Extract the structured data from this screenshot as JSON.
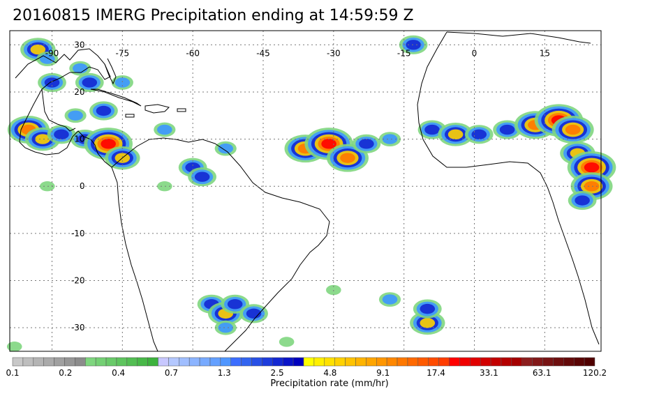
{
  "title": "20160815 IMERG Precipitation ending at 14:59:59 Z",
  "map": {
    "lon_range": [
      -99,
      27
    ],
    "lat_range": [
      -35,
      33
    ],
    "lon_ticks": [
      -90,
      -75,
      -60,
      -45,
      -30,
      -15,
      0,
      15
    ],
    "lat_ticks": [
      30,
      20,
      10,
      0,
      -10,
      -20,
      -30
    ],
    "lon_labels": [
      "-90",
      "-75",
      "-60",
      "-45",
      "-30",
      "-15",
      "0",
      "15"
    ],
    "lat_labels": [
      "30",
      "20",
      "10",
      "0",
      "-10",
      "-20",
      "-30"
    ],
    "grid": "dotted"
  },
  "colorbar": {
    "label": "Precipitation rate (mm/hr)",
    "tick_labels": [
      "0.1",
      "0.2",
      "0.4",
      "0.7",
      "1.3",
      "2.5",
      "4.8",
      "9.1",
      "17.4",
      "33.1",
      "63.1",
      "120.2"
    ],
    "colors": [
      "#c8c8c8",
      "#bebebe",
      "#b4b4b4",
      "#aaaaaa",
      "#a0a0a0",
      "#969696",
      "#8c8c8c",
      "#7fd67f",
      "#74d074",
      "#69ca69",
      "#5ec45e",
      "#53be53",
      "#48b848",
      "#3db23d",
      "#c8c8ff",
      "#b4c8ff",
      "#a0beff",
      "#8cb4ff",
      "#78aaff",
      "#64a0ff",
      "#5096ff",
      "#3c6eff",
      "#3264f0",
      "#2850e6",
      "#1e3cdc",
      "#1428d2",
      "#0a14c8",
      "#0000be",
      "#ffff00",
      "#fff000",
      "#ffe100",
      "#ffd200",
      "#ffc300",
      "#ffb400",
      "#ffa500",
      "#ff9600",
      "#ff8700",
      "#ff7800",
      "#ff6900",
      "#ff5a00",
      "#ff4b00",
      "#ff3c00",
      "#ff0000",
      "#f00000",
      "#e10000",
      "#d20000",
      "#c30000",
      "#b40000",
      "#a50000",
      "#8c1e1e",
      "#821919",
      "#781414",
      "#6e0f0f",
      "#640a0a",
      "#5a0505",
      "#500000"
    ]
  },
  "precip_cells": [
    {
      "lon": -93,
      "lat": 29,
      "level": 4
    },
    {
      "lon": -91,
      "lat": 27,
      "level": 2
    },
    {
      "lon": -90,
      "lat": 22,
      "level": 3
    },
    {
      "lon": -84,
      "lat": 25,
      "level": 2
    },
    {
      "lon": -82,
      "lat": 22,
      "level": 3
    },
    {
      "lon": -75,
      "lat": 22,
      "level": 2
    },
    {
      "lon": -79,
      "lat": 16,
      "level": 3
    },
    {
      "lon": -85,
      "lat": 15,
      "level": 2
    },
    {
      "lon": -95,
      "lat": 12,
      "level": 5
    },
    {
      "lon": -92,
      "lat": 10,
      "level": 4
    },
    {
      "lon": -88,
      "lat": 11,
      "level": 3
    },
    {
      "lon": -83,
      "lat": 10,
      "level": 3
    },
    {
      "lon": -78,
      "lat": 9,
      "level": 6
    },
    {
      "lon": -75,
      "lat": 6,
      "level": 4
    },
    {
      "lon": -66,
      "lat": 12,
      "level": 2
    },
    {
      "lon": -60,
      "lat": 4,
      "level": 3
    },
    {
      "lon": -58,
      "lat": 2,
      "level": 3
    },
    {
      "lon": -53,
      "lat": 8,
      "level": 2
    },
    {
      "lon": -66,
      "lat": 0,
      "level": 1
    },
    {
      "lon": -36,
      "lat": 8,
      "level": 5
    },
    {
      "lon": -31,
      "lat": 9,
      "level": 6
    },
    {
      "lon": -27,
      "lat": 6,
      "level": 5
    },
    {
      "lon": -23,
      "lat": 9,
      "level": 3
    },
    {
      "lon": -18,
      "lat": 10,
      "level": 2
    },
    {
      "lon": -13,
      "lat": 30,
      "level": 3
    },
    {
      "lon": -9,
      "lat": 12,
      "level": 3
    },
    {
      "lon": -4,
      "lat": 11,
      "level": 4
    },
    {
      "lon": 1,
      "lat": 11,
      "level": 3
    },
    {
      "lon": 7,
      "lat": 12,
      "level": 3
    },
    {
      "lon": 13,
      "lat": 13,
      "level": 5
    },
    {
      "lon": 18,
      "lat": 14,
      "level": 6
    },
    {
      "lon": 21,
      "lat": 12,
      "level": 5
    },
    {
      "lon": 22,
      "lat": 7,
      "level": 4
    },
    {
      "lon": 25,
      "lat": 4,
      "level": 6
    },
    {
      "lon": 25,
      "lat": 0,
      "level": 5
    },
    {
      "lon": 23,
      "lat": -3,
      "level": 3
    },
    {
      "lon": -56,
      "lat": -25,
      "level": 3
    },
    {
      "lon": -53,
      "lat": -27,
      "level": 4
    },
    {
      "lon": -51,
      "lat": -25,
      "level": 3
    },
    {
      "lon": -47,
      "lat": -27,
      "level": 3
    },
    {
      "lon": -53,
      "lat": -30,
      "level": 2
    },
    {
      "lon": -10,
      "lat": -29,
      "level": 4
    },
    {
      "lon": -10,
      "lat": -26,
      "level": 3
    },
    {
      "lon": -30,
      "lat": -22,
      "level": 1
    },
    {
      "lon": -18,
      "lat": -24,
      "level": 2
    },
    {
      "lon": -40,
      "lat": -33,
      "level": 1
    },
    {
      "lon": -98,
      "lat": -34,
      "level": 1
    },
    {
      "lon": -91,
      "lat": 0,
      "level": 1
    }
  ]
}
